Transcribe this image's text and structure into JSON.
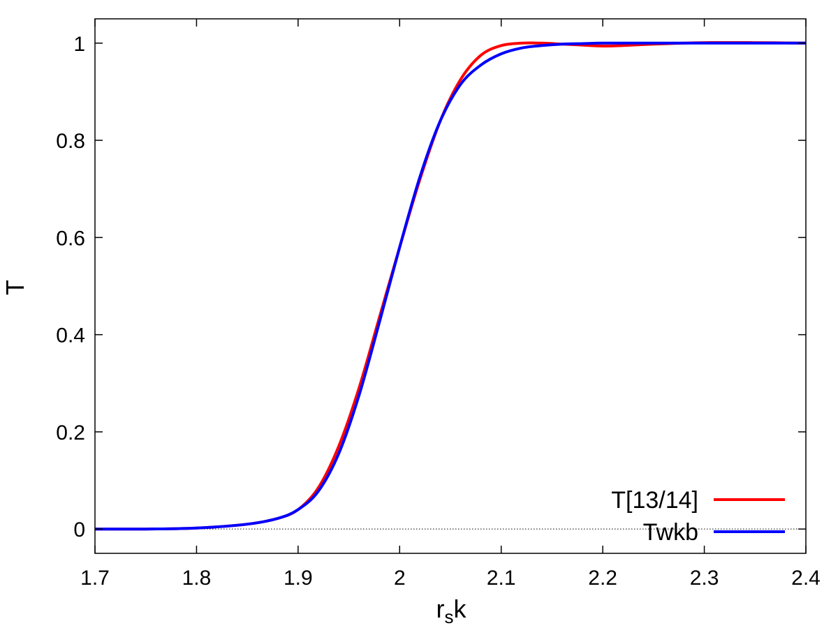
{
  "chart_data": {
    "type": "line",
    "xlabel": {
      "main": "r",
      "sub": "s",
      "tail": "k"
    },
    "ylabel": "T",
    "xlim": [
      1.7,
      2.4
    ],
    "ylim": [
      -0.05,
      1.05
    ],
    "xticks": [
      1.7,
      1.8,
      1.9,
      2.0,
      2.1,
      2.2,
      2.3,
      2.4
    ],
    "xtick_labels": [
      "1.7",
      "1.8",
      "1.9",
      "2",
      "2.1",
      "2.2",
      "2.3",
      "2.4"
    ],
    "yticks": [
      0,
      0.2,
      0.4,
      0.6,
      0.8,
      1.0
    ],
    "ytick_labels": [
      "0",
      "0.2",
      "0.4",
      "0.6",
      "0.8",
      "1"
    ],
    "zero_line": true,
    "grid": false,
    "legend_position": "bottom-right",
    "series": [
      {
        "name": "T[13/14]",
        "color": "#ff0000",
        "x": [
          1.7,
          1.75,
          1.8,
          1.85,
          1.88,
          1.9,
          1.92,
          1.94,
          1.96,
          1.98,
          2.0,
          2.02,
          2.04,
          2.06,
          2.08,
          2.1,
          2.12,
          2.14,
          2.16,
          2.18,
          2.2,
          2.22,
          2.25,
          2.3,
          2.35,
          2.4
        ],
        "y": [
          0.0,
          0.0,
          0.002,
          0.01,
          0.022,
          0.04,
          0.085,
          0.17,
          0.29,
          0.435,
          0.58,
          0.72,
          0.84,
          0.925,
          0.975,
          0.995,
          1.0,
          1.0,
          0.998,
          0.996,
          0.994,
          0.995,
          0.998,
          1.001,
          1.001,
          1.0
        ]
      },
      {
        "name": "Twkb",
        "color": "#0000ff",
        "x": [
          1.7,
          1.75,
          1.8,
          1.85,
          1.88,
          1.9,
          1.92,
          1.94,
          1.96,
          1.98,
          2.0,
          2.02,
          2.04,
          2.06,
          2.08,
          2.1,
          2.12,
          2.14,
          2.16,
          2.18,
          2.2,
          2.25,
          2.3,
          2.35,
          2.4
        ],
        "y": [
          0.0,
          0.0,
          0.002,
          0.01,
          0.022,
          0.04,
          0.078,
          0.155,
          0.275,
          0.425,
          0.58,
          0.725,
          0.84,
          0.915,
          0.955,
          0.978,
          0.99,
          0.995,
          0.998,
          0.999,
          1.0,
          1.0,
          1.0,
          1.0,
          1.0
        ]
      }
    ]
  }
}
